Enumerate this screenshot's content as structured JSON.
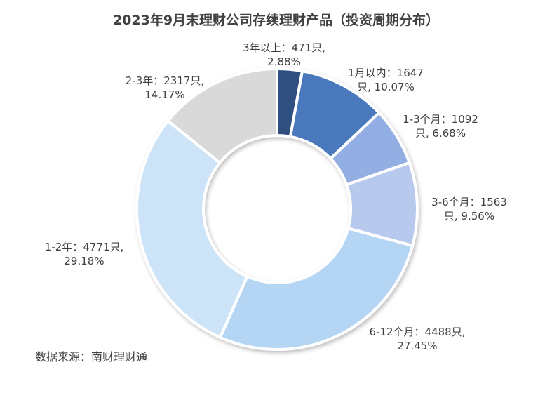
{
  "chart_data": {
    "type": "pie",
    "title": "2023年9月末理财公司存续理财产品（投资周期分布）",
    "donut": true,
    "slices": [
      {
        "label": "3年以上",
        "count": "471只",
        "percent": 2.88,
        "color": "#2f4f7f"
      },
      {
        "label": "1月以内",
        "count": "1647只",
        "percent": 10.07,
        "color": "#4a78bd"
      },
      {
        "label": "1-3个月",
        "count": "1092只",
        "percent": 6.68,
        "color": "#93aee3"
      },
      {
        "label": "3-6个月",
        "count": "1563只",
        "percent": 9.56,
        "color": "#b7c9ec"
      },
      {
        "label": "6-12个月",
        "count": "4488只",
        "percent": 27.45,
        "color": "#b5d5f5"
      },
      {
        "label": "1-2年",
        "count": "4771只",
        "percent": 29.18,
        "color": "#cde3f8"
      },
      {
        "label": "2-3年",
        "count": "2317只",
        "percent": 14.17,
        "color": "#d9d9d9"
      }
    ],
    "label_lines": [
      [
        "3年以上：471只,",
        "2.88%"
      ],
      [
        "1月以内：1647",
        "只, 10.07%"
      ],
      [
        "1-3个月：1092",
        "只, 6.68%"
      ],
      [
        "3-6个月：1563",
        "只, 9.56%"
      ],
      [
        "6-12个月：4488只,",
        "27.45%"
      ],
      [
        "1-2年：4771只,",
        "29.18%"
      ],
      [
        "2-3年：2317只,",
        "14.17%"
      ]
    ]
  },
  "source": "数据来源：南财理财通"
}
